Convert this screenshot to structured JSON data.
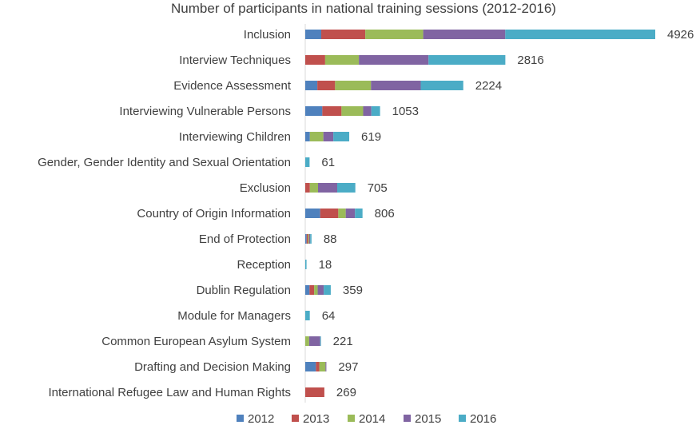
{
  "chart_data": {
    "type": "bar",
    "orientation": "horizontal",
    "stacked": true,
    "title": "Number of participants in national training sessions (2012-2016)",
    "xlabel": "",
    "ylabel": "",
    "grid": false,
    "legend_position": "bottom",
    "xlim": [
      0,
      4926
    ],
    "categories": [
      "Inclusion",
      "Interview Techniques",
      "Evidence Assessment",
      "Interviewing Vulnerable Persons",
      "Interviewing Children",
      "Gender, Gender Identity and Sexual Orientation",
      "Exclusion",
      "Country of Origin Information",
      "End of Protection",
      "Reception",
      "Dublin Regulation",
      "Module for Managers",
      "Common European Asylum System",
      "Drafting and Decision Making",
      "International Refugee Law and Human Rights"
    ],
    "series": [
      {
        "name": "2012",
        "color": "#4f81bd",
        "values": [
          225,
          0,
          170,
          240,
          65,
          0,
          0,
          210,
          20,
          0,
          60,
          0,
          0,
          150,
          0
        ]
      },
      {
        "name": "2013",
        "color": "#c0504d",
        "values": [
          620,
          280,
          250,
          270,
          0,
          0,
          65,
          255,
          20,
          0,
          65,
          0,
          0,
          50,
          269
        ]
      },
      {
        "name": "2014",
        "color": "#9bbb59",
        "values": [
          815,
          475,
          505,
          305,
          190,
          0,
          115,
          105,
          15,
          0,
          50,
          0,
          55,
          85,
          0
        ]
      },
      {
        "name": "2015",
        "color": "#8064a2",
        "values": [
          1155,
          980,
          700,
          115,
          140,
          0,
          270,
          130,
          15,
          0,
          85,
          0,
          155,
          12,
          0
        ]
      },
      {
        "name": "2016",
        "color": "#4bacc6",
        "values": [
          2111,
          1081,
          599,
          123,
          224,
          61,
          255,
          106,
          18,
          18,
          99,
          64,
          11,
          0,
          0
        ]
      }
    ],
    "totals": [
      "4926",
      "2816",
      "2224",
      "1053",
      "619",
      "61",
      "705",
      "806",
      "88",
      "18",
      "359",
      "64",
      "221",
      "297",
      "269"
    ]
  }
}
